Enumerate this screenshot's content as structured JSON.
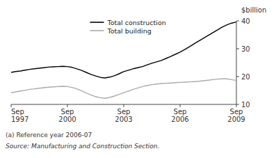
{
  "chart_data": {
    "type": "line",
    "y_label": "$billion",
    "annotations": [
      "(a) Reference year 2006-07",
      "Source: Manufacturing and Construction Section."
    ],
    "categories": [
      "Sep\n1997",
      null,
      null,
      null,
      null,
      null,
      null,
      null,
      null,
      null,
      null,
      null,
      "Sep\n2000",
      null,
      null,
      null,
      null,
      null,
      null,
      null,
      null,
      null,
      null,
      null,
      "Sep\n2003",
      null,
      null,
      null,
      null,
      null,
      null,
      null,
      null,
      null,
      null,
      null,
      "Sep\n2006",
      null,
      null,
      null,
      null,
      null,
      null,
      null,
      null,
      null,
      null,
      null,
      "Sep\n2009"
    ],
    "series": [
      {
        "name": "Total construction",
        "color": "#000000",
        "values": [
          21.5,
          21.8,
          22.0,
          22.3,
          22.6,
          22.8,
          23.0,
          23.2,
          23.4,
          23.5,
          23.6,
          23.7,
          23.6,
          23.3,
          22.8,
          22.2,
          21.5,
          20.8,
          20.2,
          19.7,
          19.5,
          19.8,
          20.3,
          21.0,
          21.8,
          22.3,
          22.8,
          23.2,
          23.6,
          24.2,
          24.8,
          25.3,
          25.8,
          26.5,
          27.2,
          28.0,
          28.8,
          29.7,
          30.7,
          31.8,
          32.8,
          33.8,
          34.8,
          35.8,
          36.8,
          37.8,
          38.6,
          39.2,
          39.6
        ]
      },
      {
        "name": "Total building",
        "color": "#aaaaaa",
        "values": [
          14.2,
          14.5,
          14.8,
          15.1,
          15.4,
          15.6,
          15.8,
          16.0,
          16.2,
          16.3,
          16.4,
          16.5,
          16.4,
          16.1,
          15.6,
          14.9,
          14.1,
          13.4,
          12.8,
          12.4,
          12.2,
          12.5,
          13.0,
          13.6,
          14.2,
          14.8,
          15.4,
          15.9,
          16.4,
          16.8,
          17.1,
          17.3,
          17.5,
          17.6,
          17.7,
          17.8,
          17.9,
          18.0,
          18.1,
          18.2,
          18.3,
          18.5,
          18.7,
          18.9,
          19.1,
          19.2,
          19.2,
          18.9,
          18.6
        ]
      }
    ],
    "ylim": [
      10,
      40
    ],
    "yticks": [
      10,
      20,
      30,
      40
    ],
    "grid": false,
    "legend": "top"
  }
}
